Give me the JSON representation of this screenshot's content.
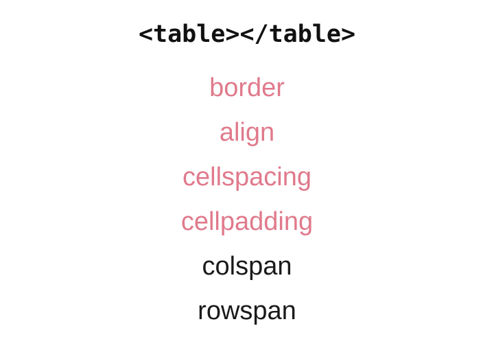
{
  "title": "<table></table>",
  "colors": {
    "highlight": "#e07a8c",
    "plain": "#1a1a1a",
    "title": "#111111",
    "background": "#ffffff"
  },
  "attributes": [
    {
      "label": "border",
      "style": "highlight"
    },
    {
      "label": "align",
      "style": "highlight"
    },
    {
      "label": "cellspacing",
      "style": "highlight"
    },
    {
      "label": "cellpadding",
      "style": "highlight"
    },
    {
      "label": "colspan",
      "style": "plain"
    },
    {
      "label": "rowspan",
      "style": "plain"
    }
  ]
}
